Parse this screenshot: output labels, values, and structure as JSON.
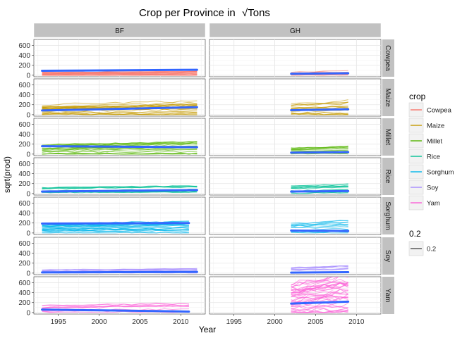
{
  "chart_data": {
    "type": "line",
    "title": "Crop per Province in",
    "title_math": "√Tons",
    "xlabel": "Year",
    "ylabel": "sqrt(prod)",
    "xlim": [
      1992,
      2013
    ],
    "ylim": [
      -30,
      720
    ],
    "x_ticks": [
      1995,
      2000,
      2005,
      2010
    ],
    "y_ticks": [
      0,
      200,
      400,
      600
    ],
    "columns": [
      "BF",
      "GH"
    ],
    "rows": [
      "Cowpea",
      "Maize",
      "Millet",
      "Rice",
      "Sorghum",
      "Soy",
      "Yam"
    ],
    "legend": {
      "title": "crop",
      "items": [
        {
          "name": "Cowpea",
          "color": "#f8766d"
        },
        {
          "name": "Maize",
          "color": "#c49a00"
        },
        {
          "name": "Millet",
          "color": "#53b400"
        },
        {
          "name": "Rice",
          "color": "#00c094"
        },
        {
          "name": "Sorghum",
          "color": "#00b6eb"
        },
        {
          "name": "Soy",
          "color": "#a58aff"
        },
        {
          "name": "Yam",
          "color": "#fb61d7"
        }
      ],
      "size_title": "0.2",
      "size_label": "0.2"
    },
    "trend_color": "#3366ff",
    "panels": [
      {
        "col": "BF",
        "row": "Cowpea",
        "x_range": [
          1993,
          2012
        ],
        "mean": [
          90,
          110
        ],
        "spread": 70,
        "n": 18
      },
      {
        "col": "BF",
        "row": "Maize",
        "x_range": [
          1993,
          2012
        ],
        "mean": [
          85,
          150
        ],
        "spread": 240,
        "n": 22
      },
      {
        "col": "BF",
        "row": "Millet",
        "x_range": [
          1993,
          2012
        ],
        "mean": [
          160,
          140
        ],
        "spread": 220,
        "n": 20
      },
      {
        "col": "BF",
        "row": "Rice",
        "x_range": [
          1993,
          2012
        ],
        "mean": [
          40,
          70
        ],
        "spread": 150,
        "n": 14
      },
      {
        "col": "BF",
        "row": "Sorghum",
        "x_range": [
          1993,
          2011
        ],
        "mean": [
          190,
          200
        ],
        "spread": 220,
        "n": 24
      },
      {
        "col": "BF",
        "row": "Soy",
        "x_range": [
          1993,
          2012
        ],
        "mean": [
          15,
          25
        ],
        "spread": 90,
        "n": 12
      },
      {
        "col": "BF",
        "row": "Yam",
        "x_range": [
          1993,
          2011
        ],
        "mean": [
          60,
          20
        ],
        "spread": 200,
        "n": 10
      },
      {
        "col": "GH",
        "row": "Cowpea",
        "x_range": [
          2002,
          2009
        ],
        "mean": [
          30,
          40
        ],
        "spread": 110,
        "n": 10
      },
      {
        "col": "GH",
        "row": "Maize",
        "x_range": [
          2002,
          2009
        ],
        "mean": [
          90,
          110
        ],
        "spread": 260,
        "n": 16
      },
      {
        "col": "GH",
        "row": "Millet",
        "x_range": [
          2002,
          2009
        ],
        "mean": [
          30,
          40
        ],
        "spread": 150,
        "n": 12
      },
      {
        "col": "GH",
        "row": "Rice",
        "x_range": [
          2002,
          2009
        ],
        "mean": [
          40,
          50
        ],
        "spread": 180,
        "n": 14
      },
      {
        "col": "GH",
        "row": "Sorghum",
        "x_range": [
          2002,
          2009
        ],
        "mean": [
          50,
          40
        ],
        "spread": 220,
        "n": 14
      },
      {
        "col": "GH",
        "row": "Soy",
        "x_range": [
          2002,
          2009
        ],
        "mean": [
          10,
          20
        ],
        "spread": 140,
        "n": 10
      },
      {
        "col": "GH",
        "row": "Yam",
        "x_range": [
          2002,
          2009
        ],
        "mean": [
          180,
          220
        ],
        "spread": 700,
        "n": 40
      }
    ]
  }
}
